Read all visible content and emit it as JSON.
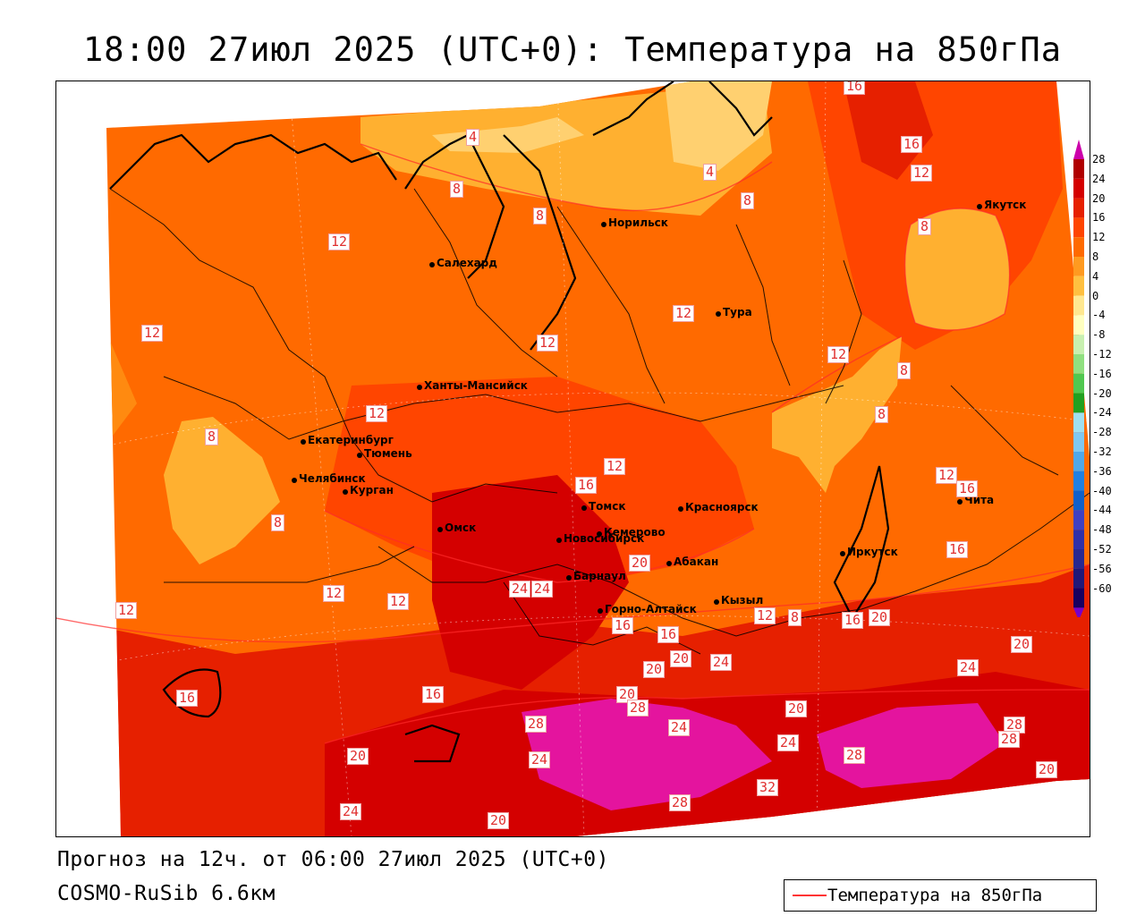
{
  "title": "18:00 27июл 2025 (UTC+0): Температура на 850гПа",
  "footer": {
    "forecast": "Прогноз на 12ч. от 06:00 27июл 2025 (UTC+0)",
    "model": "COSMO-RuSib 6.6км"
  },
  "legend": {
    "label": "Температура на 850гПа",
    "line_color": "#ff3333"
  },
  "colorbar": {
    "levels": [
      "28",
      "24",
      "20",
      "16",
      "12",
      "8",
      "4",
      "0",
      "-4",
      "-8",
      "-12",
      "-16",
      "-20",
      "-24",
      "-28",
      "-32",
      "-36",
      "-40",
      "-44",
      "-48",
      "-52",
      "-56",
      "-60"
    ],
    "colors": [
      "#b00000",
      "#d40000",
      "#e62000",
      "#ff4500",
      "#ff6a00",
      "#ff9a20",
      "#ffc040",
      "#ffe890",
      "#ffffc0",
      "#c8f0b0",
      "#90e080",
      "#50c850",
      "#20a020",
      "#a0e0f0",
      "#80c8f0",
      "#50a8e8",
      "#2080e0",
      "#1060c8",
      "#4040c0",
      "#3030a8",
      "#282890",
      "#201878",
      "#180060"
    ],
    "top_color": "#cc00aa"
  },
  "contour_labels": [
    {
      "text": "16"
    },
    {
      "text": "4"
    },
    {
      "text": "4"
    },
    {
      "text": "16"
    },
    {
      "text": "12"
    },
    {
      "text": "8"
    },
    {
      "text": "8"
    },
    {
      "text": "8"
    },
    {
      "text": "12"
    },
    {
      "text": "8"
    },
    {
      "text": "12"
    },
    {
      "text": "12"
    },
    {
      "text": "12"
    },
    {
      "text": "12"
    },
    {
      "text": "12"
    },
    {
      "text": "8"
    },
    {
      "text": "12"
    },
    {
      "text": "8"
    },
    {
      "text": "8"
    },
    {
      "text": "12"
    },
    {
      "text": "16"
    },
    {
      "text": "16"
    },
    {
      "text": "8"
    },
    {
      "text": "16"
    },
    {
      "text": "12"
    },
    {
      "text": "12"
    },
    {
      "text": "12"
    },
    {
      "text": "24"
    },
    {
      "text": "20"
    },
    {
      "text": "16"
    },
    {
      "text": "16"
    },
    {
      "text": "12"
    },
    {
      "text": "8"
    },
    {
      "text": "16"
    },
    {
      "text": "20"
    },
    {
      "text": "20"
    },
    {
      "text": "24"
    },
    {
      "text": "20"
    },
    {
      "text": "24"
    },
    {
      "text": "16"
    },
    {
      "text": "20"
    },
    {
      "text": "28"
    },
    {
      "text": "24"
    },
    {
      "text": "20"
    },
    {
      "text": "24"
    },
    {
      "text": "28"
    },
    {
      "text": "28"
    },
    {
      "text": "28"
    },
    {
      "text": "24"
    },
    {
      "text": "20"
    },
    {
      "text": "28"
    },
    {
      "text": "24"
    },
    {
      "text": "32"
    },
    {
      "text": "28"
    },
    {
      "text": "20"
    },
    {
      "text": "20"
    },
    {
      "text": "24"
    },
    {
      "text": "20"
    },
    {
      "text": "16"
    }
  ],
  "cities": [
    {
      "name": "Норильск"
    },
    {
      "name": "Якутск"
    },
    {
      "name": "Салехард"
    },
    {
      "name": "Тура"
    },
    {
      "name": "Ханты-Мансийск"
    },
    {
      "name": "Екатеринбург"
    },
    {
      "name": "Тюмень"
    },
    {
      "name": "Челябинск"
    },
    {
      "name": "Курган"
    },
    {
      "name": "Омск"
    },
    {
      "name": "Новосибирск"
    },
    {
      "name": "Томск"
    },
    {
      "name": "Кемерово"
    },
    {
      "name": "Красноярск"
    },
    {
      "name": "Барнаул"
    },
    {
      "name": "Абакан"
    },
    {
      "name": "Горно-Алтайск"
    },
    {
      "name": "Кызыл"
    },
    {
      "name": "Иркутск"
    },
    {
      "name": "Чита"
    }
  ]
}
